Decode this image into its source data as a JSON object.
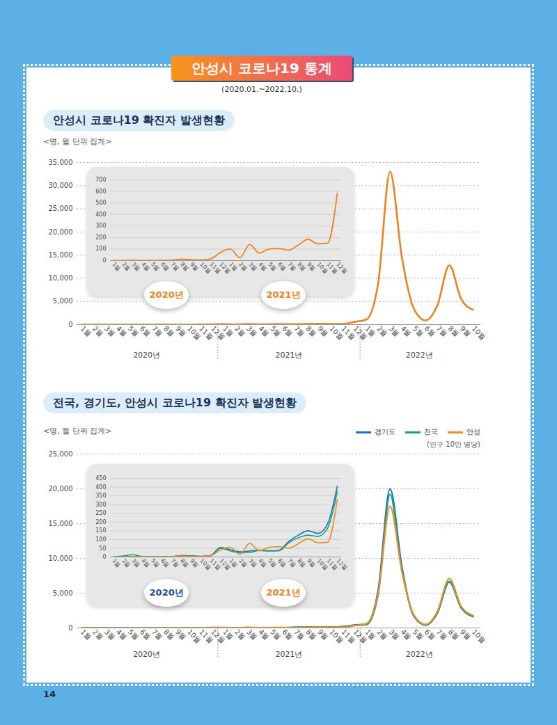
{
  "title": "안성시 코로나19 통계",
  "subtitle": "(2020.01.~2022.10.)",
  "page_number": 14,
  "chart_data": [
    {
      "type": "line",
      "title": "안성시 코로나19 확진자 발생현황",
      "y_label": "<명, 월 단위 집계>",
      "categories": [
        "1월",
        "2월",
        "3월",
        "4월",
        "5월",
        "6월",
        "7월",
        "8월",
        "9월",
        "10월",
        "11월",
        "12월",
        "1월",
        "2월",
        "3월",
        "4월",
        "5월",
        "6월",
        "7월",
        "8월",
        "9월",
        "10월",
        "11월",
        "12월",
        "1월",
        "2월",
        "3월",
        "4월",
        "5월",
        "6월",
        "7월",
        "8월",
        "9월",
        "10월"
      ],
      "groups": [
        {
          "label": "2020년",
          "size": 12
        },
        {
          "label": "2021년",
          "size": 12
        },
        {
          "label": "2022년",
          "size": 10
        }
      ],
      "values": [
        0,
        0,
        3,
        1,
        1,
        2,
        3,
        12,
        6,
        5,
        15,
        70,
        100,
        25,
        140,
        65,
        100,
        105,
        90,
        135,
        185,
        145,
        150,
        585,
        1100,
        9000,
        33000,
        14500,
        3500,
        900,
        4200,
        12800,
        5500,
        3200
      ],
      "color": "#f0821e",
      "ylim": [
        0,
        35000
      ],
      "yticks": [
        0,
        {
          "value": 5000,
          "label": "5,000"
        },
        {
          "value": 10000,
          "label": "10,000"
        },
        {
          "value": 15000,
          "label": "15,000"
        },
        {
          "value": 20000,
          "label": "20,000"
        },
        {
          "value": 25000,
          "label": "25,000"
        },
        {
          "value": 30000,
          "label": "30,000"
        },
        {
          "value": 35000,
          "label": "35,000"
        }
      ],
      "grid": true,
      "inset": {
        "type": "line",
        "categories": [
          "1월",
          "2월",
          "3월",
          "4월",
          "5월",
          "6월",
          "7월",
          "8월",
          "9월",
          "10월",
          "11월",
          "12월",
          "1월",
          "2월",
          "3월",
          "4월",
          "5월",
          "6월",
          "7월",
          "8월",
          "9월",
          "10월",
          "11월",
          "12월"
        ],
        "groups": [
          {
            "label": "2020년",
            "size": 12,
            "color": "#f0821e"
          },
          {
            "label": "2021년",
            "size": 12,
            "color": "#f0821e"
          }
        ],
        "values": [
          0,
          0,
          3,
          1,
          1,
          2,
          3,
          12,
          6,
          5,
          15,
          70,
          100,
          25,
          140,
          65,
          100,
          105,
          90,
          135,
          185,
          145,
          150,
          585
        ],
        "color": "#f0821e",
        "ylim": [
          0,
          700
        ],
        "yticks": [
          0,
          100,
          200,
          300,
          400,
          500,
          600,
          700
        ],
        "grid": true
      }
    },
    {
      "type": "line",
      "title": "전국, 경기도, 안성시 코로나19 확진자 발생현황",
      "y_label": "<명, 월 단위 집계>",
      "annotations": [
        "(인구 10만 명당)"
      ],
      "legend": "top-right",
      "categories": [
        "1월",
        "2월",
        "3월",
        "4월",
        "5월",
        "6월",
        "7월",
        "8월",
        "9월",
        "10월",
        "11월",
        "12월",
        "1월",
        "2월",
        "3월",
        "4월",
        "5월",
        "6월",
        "7월",
        "8월",
        "9월",
        "10월",
        "11월",
        "12월",
        "1월",
        "2월",
        "3월",
        "4월",
        "5월",
        "6월",
        "7월",
        "8월",
        "9월",
        "10월"
      ],
      "groups": [
        {
          "label": "2020년",
          "size": 12
        },
        {
          "label": "2021년",
          "size": 12
        },
        {
          "label": "2022년",
          "size": 10
        }
      ],
      "series": [
        {
          "name": "경기도",
          "color": "#1f6fbf",
          "values": [
            0,
            1,
            3,
            1,
            1,
            2,
            2,
            9,
            6,
            4,
            9,
            55,
            42,
            30,
            34,
            40,
            36,
            38,
            88,
            125,
            150,
            135,
            190,
            405,
            560,
            5500,
            20000,
            8800,
            1700,
            400,
            2200,
            6600,
            2900,
            1700
          ]
        },
        {
          "name": "전국",
          "color": "#17a37a",
          "values": [
            0,
            6,
            13,
            2,
            1,
            2,
            3,
            5,
            7,
            3,
            7,
            50,
            35,
            24,
            26,
            37,
            34,
            35,
            80,
            110,
            125,
            118,
            165,
            375,
            450,
            4800,
            19200,
            8300,
            1750,
            420,
            2150,
            6700,
            2900,
            1600
          ]
        },
        {
          "name": "안성",
          "color": "#f08a24",
          "values": [
            0,
            0,
            2,
            1,
            1,
            1,
            2,
            7,
            3,
            3,
            8,
            40,
            56,
            14,
            78,
            36,
            56,
            59,
            50,
            76,
            104,
            81,
            84,
            330,
            620,
            5000,
            17500,
            8100,
            1900,
            500,
            2400,
            7100,
            3100,
            1800
          ]
        }
      ],
      "ylim": [
        0,
        25000
      ],
      "yticks": [
        0,
        {
          "value": 5000,
          "label": "5,000"
        },
        {
          "value": 10000,
          "label": "10,000"
        },
        {
          "value": 15000,
          "label": "15,000"
        },
        {
          "value": 20000,
          "label": "20,000"
        },
        {
          "value": 25000,
          "label": "25,000"
        }
      ],
      "grid": true,
      "inset": {
        "type": "line",
        "categories": [
          "1월",
          "2월",
          "3월",
          "4월",
          "5월",
          "6월",
          "7월",
          "8월",
          "9월",
          "10월",
          "11월",
          "12월",
          "1월",
          "2월",
          "3월",
          "4월",
          "5월",
          "6월",
          "7월",
          "8월",
          "9월",
          "10월",
          "11월",
          "12월"
        ],
        "groups": [
          {
            "label": "2020년",
            "size": 12,
            "color": "#1f4f9a"
          },
          {
            "label": "2021년",
            "size": 12,
            "color": "#f0821e"
          }
        ],
        "series": [
          {
            "name": "경기도",
            "color": "#1f6fbf",
            "values": [
              0,
              1,
              3,
              1,
              1,
              2,
              2,
              9,
              6,
              4,
              9,
              55,
              42,
              30,
              34,
              40,
              36,
              38,
              88,
              125,
              150,
              135,
              190,
              405
            ]
          },
          {
            "name": "전국",
            "color": "#17a37a",
            "values": [
              0,
              6,
              13,
              2,
              1,
              2,
              3,
              5,
              7,
              3,
              7,
              50,
              35,
              24,
              26,
              37,
              34,
              35,
              80,
              110,
              125,
              118,
              165,
              375
            ]
          },
          {
            "name": "안성",
            "color": "#f08a24",
            "values": [
              0,
              0,
              2,
              1,
              1,
              1,
              2,
              7,
              3,
              3,
              8,
              40,
              56,
              14,
              78,
              36,
              56,
              59,
              50,
              76,
              104,
              81,
              84,
              330
            ]
          }
        ],
        "ylim": [
          0,
          450
        ],
        "yticks": [
          0,
          50,
          100,
          150,
          200,
          250,
          300,
          350,
          400,
          450
        ],
        "grid": true
      }
    }
  ]
}
